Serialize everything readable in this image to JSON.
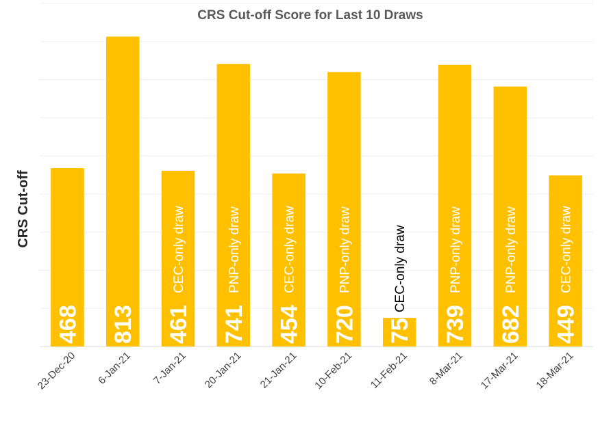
{
  "chart_data": {
    "type": "bar",
    "title": "CRS Cut-off Score for Last 10 Draws",
    "xlabel": "",
    "ylabel": "CRS Cut-off",
    "ylim": [
      0,
      900
    ],
    "grid": true,
    "legend": "none",
    "categories": [
      "23-Dec-20",
      "6-Jan-21",
      "7-Jan-21",
      "20-Jan-21",
      "21-Jan-21",
      "10-Feb-21",
      "11-Feb-21",
      "8-Mar-21",
      "17-Mar-21",
      "18-Mar-21"
    ],
    "values": [
      468,
      813,
      461,
      741,
      454,
      720,
      75,
      739,
      682,
      449
    ],
    "value_labels": [
      "468",
      "813",
      "461",
      "741",
      "454",
      "720",
      "75",
      "739",
      "682",
      "449"
    ],
    "annotations": [
      "",
      "",
      "CEC-only draw",
      "PNP-only draw",
      "CEC-only draw",
      "PNP-only draw",
      "CEC-only draw",
      "PNP-only draw",
      "PNP-only draw",
      "CEC-only draw"
    ],
    "colors": {
      "bar": "#ffc000",
      "value_label": "#ffffff",
      "annotation_inside": "#ffffff",
      "annotation_outside": "#000000"
    }
  }
}
